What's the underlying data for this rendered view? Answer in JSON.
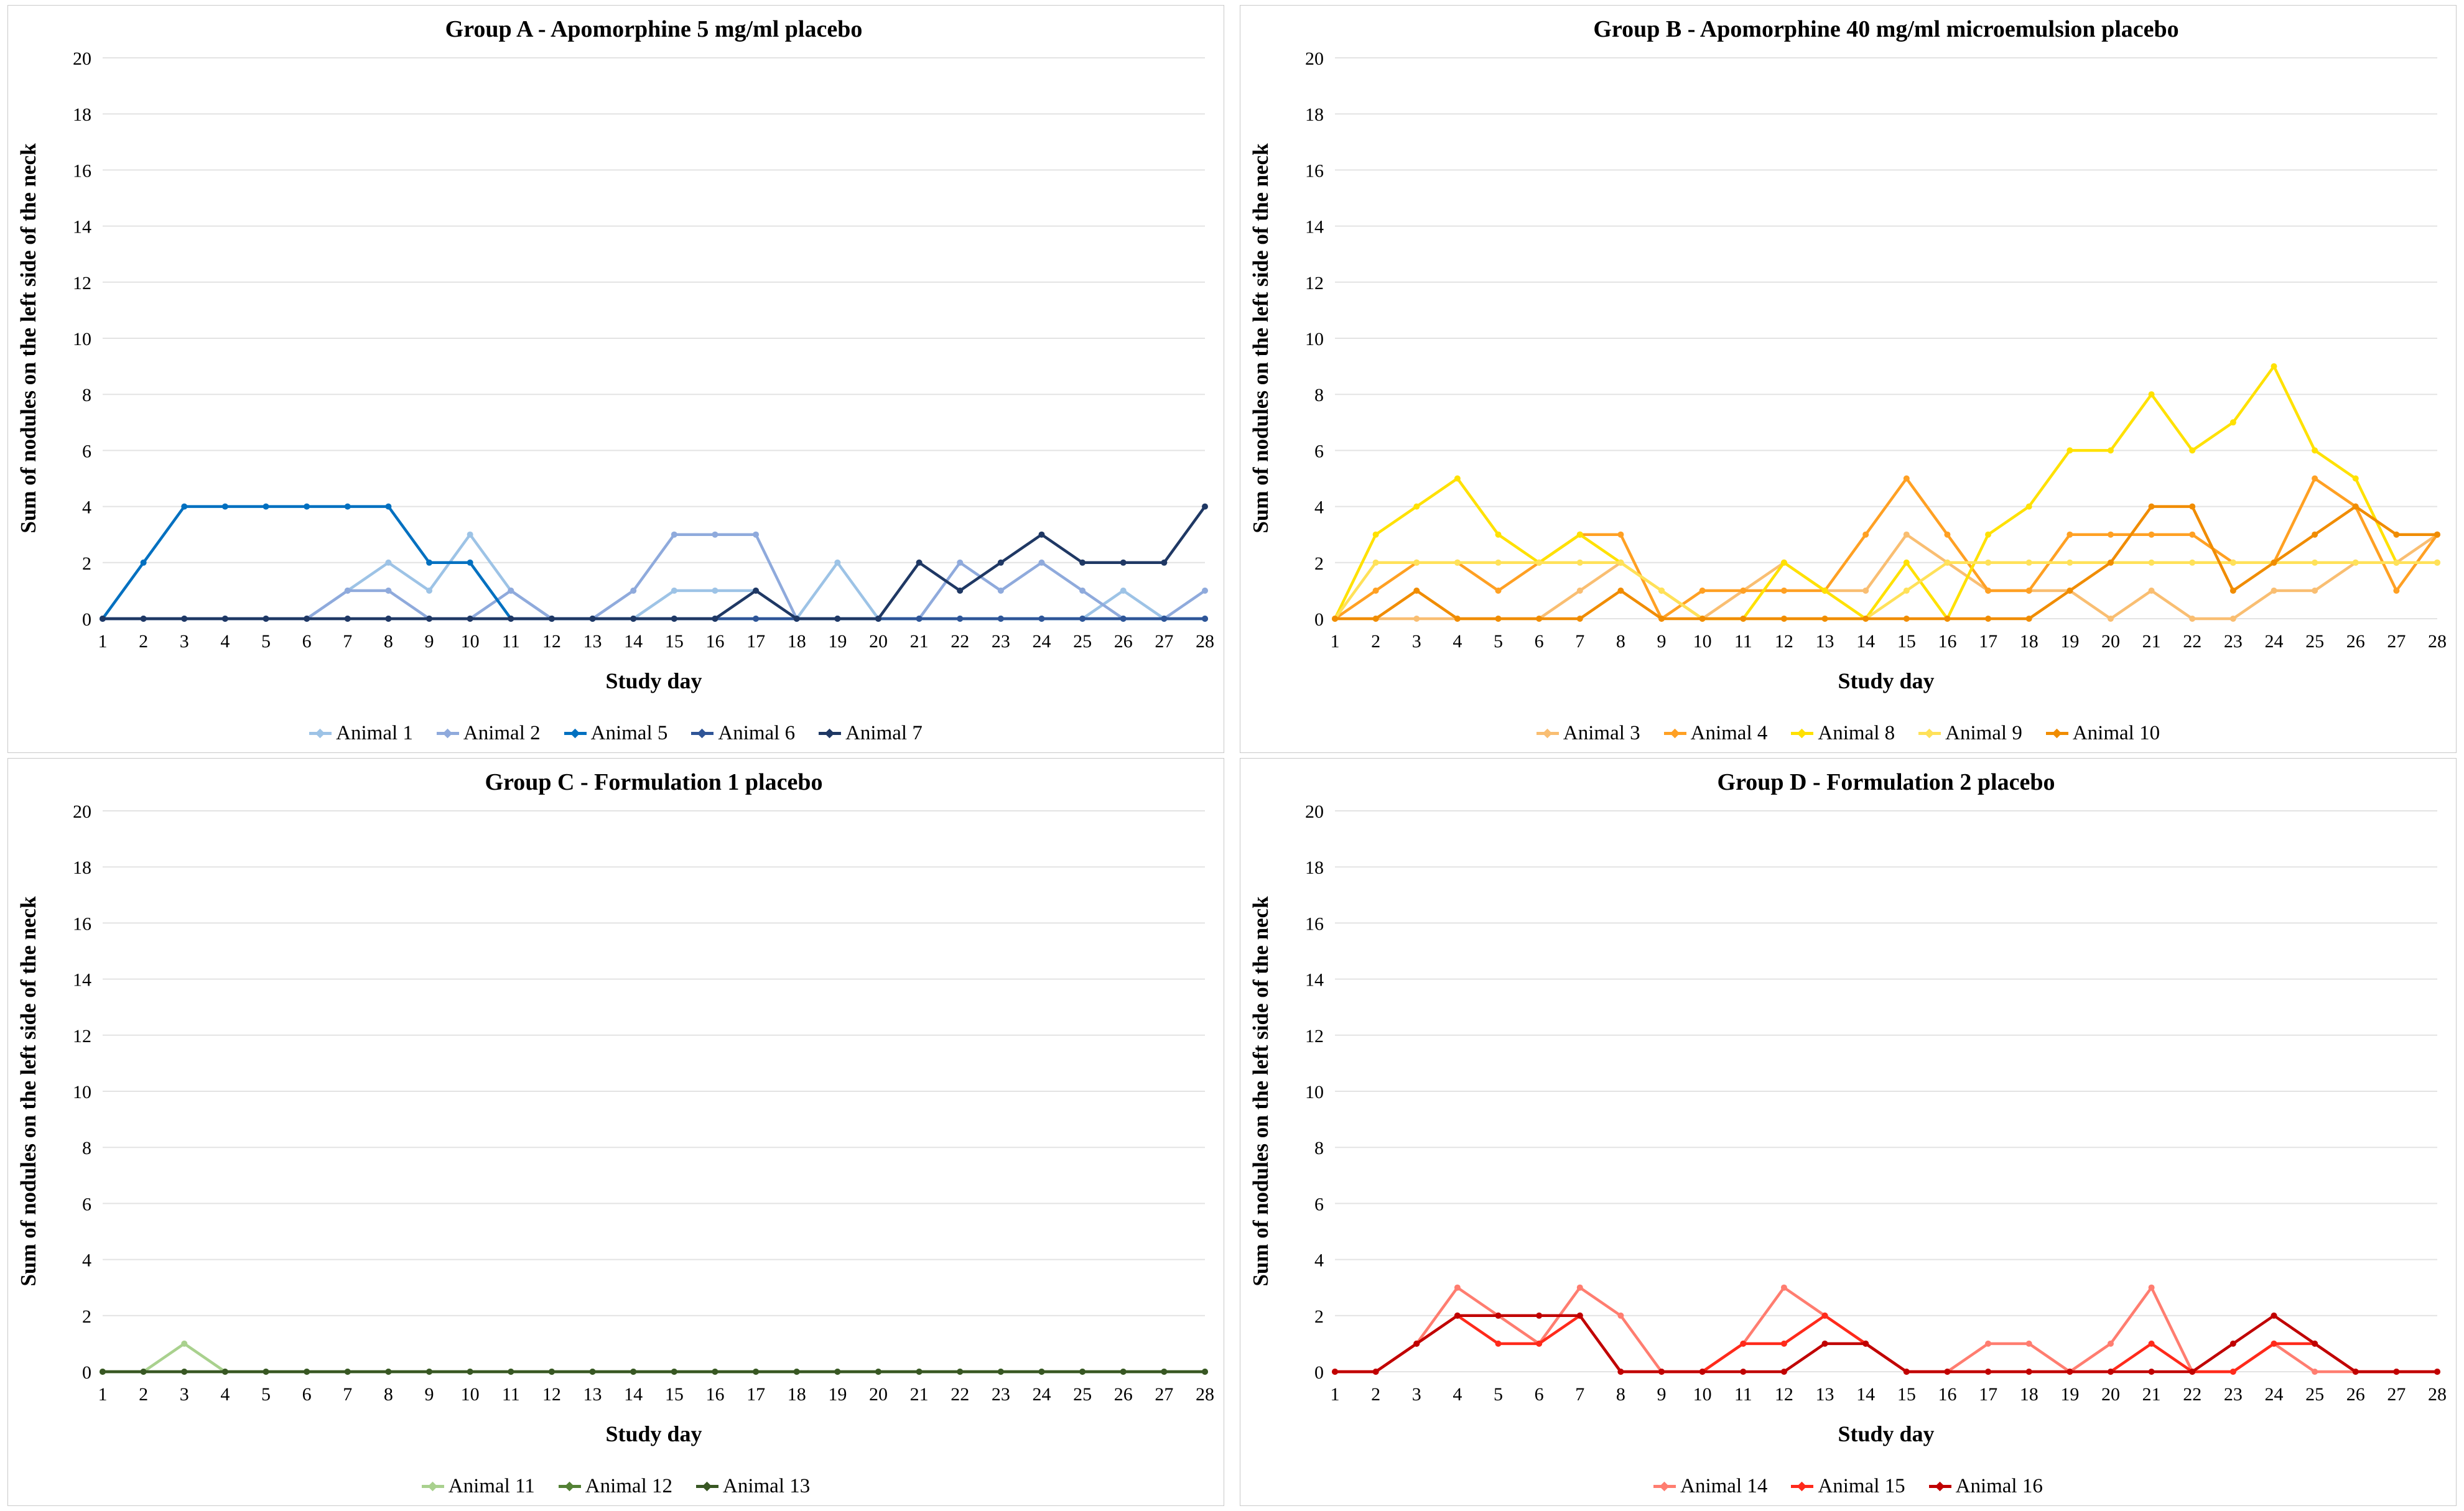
{
  "figure": {
    "background": "#ffffff",
    "panel_border_color": "#c9c9c9",
    "gridline_color": "#e3e3e3",
    "text_color": "#000000"
  },
  "chart_data": [
    {
      "id": "group-a",
      "type": "line",
      "title": "Group A - Apomorphine 5 mg/ml placebo",
      "xlabel": "Study day",
      "ylabel": "Sum of nodules on the left side of the neck",
      "x": [
        1,
        2,
        3,
        4,
        5,
        6,
        7,
        8,
        9,
        10,
        11,
        12,
        13,
        14,
        15,
        16,
        17,
        18,
        19,
        20,
        21,
        22,
        23,
        24,
        25,
        26,
        27,
        28
      ],
      "ylim": [
        0,
        20
      ],
      "yticks": [
        0,
        2,
        4,
        6,
        8,
        10,
        12,
        14,
        16,
        18,
        20
      ],
      "grid": true,
      "legend_position": "bottom",
      "series": [
        {
          "name": "Animal 1",
          "color": "#9DC3E6",
          "values": [
            0,
            0,
            0,
            0,
            0,
            0,
            1,
            2,
            1,
            3,
            1,
            0,
            0,
            0,
            1,
            1,
            1,
            0,
            2,
            0,
            0,
            0,
            0,
            0,
            0,
            1,
            0,
            0
          ]
        },
        {
          "name": "Animal 2",
          "color": "#8FAADC",
          "values": [
            0,
            0,
            0,
            0,
            0,
            0,
            1,
            1,
            0,
            0,
            1,
            0,
            0,
            1,
            3,
            3,
            3,
            0,
            0,
            0,
            0,
            2,
            1,
            2,
            1,
            0,
            0,
            1
          ]
        },
        {
          "name": "Animal 5",
          "color": "#0070C0",
          "values": [
            0,
            2,
            4,
            4,
            4,
            4,
            4,
            4,
            2,
            2,
            0,
            0,
            0,
            0,
            0,
            0,
            0,
            0,
            0,
            0,
            0,
            0,
            0,
            0,
            0,
            0,
            0,
            0
          ]
        },
        {
          "name": "Animal 6",
          "color": "#2F5597",
          "values": [
            0,
            0,
            0,
            0,
            0,
            0,
            0,
            0,
            0,
            0,
            0,
            0,
            0,
            0,
            0,
            0,
            0,
            0,
            0,
            0,
            0,
            0,
            0,
            0,
            0,
            0,
            0,
            0
          ]
        },
        {
          "name": "Animal 7",
          "color": "#1F3864",
          "values": [
            0,
            0,
            0,
            0,
            0,
            0,
            0,
            0,
            0,
            0,
            0,
            0,
            0,
            0,
            0,
            0,
            1,
            0,
            0,
            0,
            2,
            1,
            2,
            3,
            2,
            2,
            2,
            4
          ]
        }
      ]
    },
    {
      "id": "group-b",
      "type": "line",
      "title": "Group B -  Apomorphine 40 mg/ml microemulsion placebo",
      "xlabel": "Study day",
      "ylabel": "Sum of nodules on the left side of the neck",
      "x": [
        1,
        2,
        3,
        4,
        5,
        6,
        7,
        8,
        9,
        10,
        11,
        12,
        13,
        14,
        15,
        16,
        17,
        18,
        19,
        20,
        21,
        22,
        23,
        24,
        25,
        26,
        27,
        28
      ],
      "ylim": [
        0,
        20
      ],
      "yticks": [
        0,
        2,
        4,
        6,
        8,
        10,
        12,
        14,
        16,
        18,
        20
      ],
      "grid": true,
      "legend_position": "bottom",
      "series": [
        {
          "name": "Animal 3",
          "color": "#F9BE72",
          "values": [
            0,
            0,
            0,
            0,
            0,
            0,
            1,
            2,
            1,
            0,
            1,
            2,
            1,
            1,
            3,
            2,
            1,
            1,
            1,
            0,
            1,
            0,
            0,
            1,
            1,
            2,
            2,
            3
          ]
        },
        {
          "name": "Animal 4",
          "color": "#FFA023",
          "values": [
            0,
            1,
            2,
            2,
            1,
            2,
            3,
            3,
            0,
            1,
            1,
            1,
            1,
            3,
            5,
            3,
            1,
            1,
            3,
            3,
            3,
            3,
            2,
            2,
            5,
            4,
            1,
            3
          ]
        },
        {
          "name": "Animal 8",
          "color": "#FFE100",
          "values": [
            0,
            3,
            4,
            5,
            3,
            2,
            3,
            2,
            1,
            0,
            0,
            2,
            1,
            0,
            2,
            0,
            3,
            4,
            6,
            6,
            8,
            6,
            7,
            9,
            6,
            5,
            2,
            2
          ]
        },
        {
          "name": "Animal 9",
          "color": "#FFE159",
          "values": [
            0,
            2,
            2,
            2,
            2,
            2,
            2,
            2,
            1,
            0,
            0,
            0,
            0,
            0,
            1,
            2,
            2,
            2,
            2,
            2,
            2,
            2,
            2,
            2,
            2,
            2,
            2,
            2
          ]
        },
        {
          "name": "Animal 10",
          "color": "#F08C00",
          "values": [
            0,
            0,
            1,
            0,
            0,
            0,
            0,
            1,
            0,
            0,
            0,
            0,
            0,
            0,
            0,
            0,
            0,
            0,
            1,
            2,
            4,
            4,
            1,
            2,
            3,
            4,
            3,
            3
          ]
        }
      ]
    },
    {
      "id": "group-c",
      "type": "line",
      "title": "Group C - Formulation 1 placebo",
      "xlabel": "Study day",
      "ylabel": "Sum of nodules on the left side of the neck",
      "x": [
        1,
        2,
        3,
        4,
        5,
        6,
        7,
        8,
        9,
        10,
        11,
        12,
        13,
        14,
        15,
        16,
        17,
        18,
        19,
        20,
        21,
        22,
        23,
        24,
        25,
        26,
        27,
        28
      ],
      "ylim": [
        0,
        20
      ],
      "yticks": [
        0,
        2,
        4,
        6,
        8,
        10,
        12,
        14,
        16,
        18,
        20
      ],
      "grid": true,
      "legend_position": "bottom",
      "series": [
        {
          "name": "Animal 11",
          "color": "#A9D18E",
          "values": [
            0,
            0,
            1,
            0,
            0,
            0,
            0,
            0,
            0,
            0,
            0,
            0,
            0,
            0,
            0,
            0,
            0,
            0,
            0,
            0,
            0,
            0,
            0,
            0,
            0,
            0,
            0,
            0
          ]
        },
        {
          "name": "Animal 12",
          "color": "#538135",
          "values": [
            0,
            0,
            0,
            0,
            0,
            0,
            0,
            0,
            0,
            0,
            0,
            0,
            0,
            0,
            0,
            0,
            0,
            0,
            0,
            0,
            0,
            0,
            0,
            0,
            0,
            0,
            0,
            0
          ]
        },
        {
          "name": "Animal 13",
          "color": "#385723",
          "values": [
            0,
            0,
            0,
            0,
            0,
            0,
            0,
            0,
            0,
            0,
            0,
            0,
            0,
            0,
            0,
            0,
            0,
            0,
            0,
            0,
            0,
            0,
            0,
            0,
            0,
            0,
            0,
            0
          ]
        }
      ]
    },
    {
      "id": "group-d",
      "type": "line",
      "title": "Group D - Formulation 2 placebo",
      "xlabel": "Study day",
      "ylabel": "Sum of nodules on the left side of the neck",
      "x": [
        1,
        2,
        3,
        4,
        5,
        6,
        7,
        8,
        9,
        10,
        11,
        12,
        13,
        14,
        15,
        16,
        17,
        18,
        19,
        20,
        21,
        22,
        23,
        24,
        25,
        26,
        27,
        28
      ],
      "ylim": [
        0,
        20
      ],
      "yticks": [
        0,
        2,
        4,
        6,
        8,
        10,
        12,
        14,
        16,
        18,
        20
      ],
      "grid": true,
      "legend_position": "bottom",
      "series": [
        {
          "name": "Animal 14",
          "color": "#FF7D70",
          "values": [
            0,
            0,
            1,
            3,
            2,
            1,
            3,
            2,
            0,
            0,
            1,
            3,
            2,
            1,
            0,
            0,
            1,
            1,
            0,
            1,
            3,
            0,
            0,
            1,
            0,
            0,
            0,
            0
          ]
        },
        {
          "name": "Animal 15",
          "color": "#FF2A1B",
          "values": [
            0,
            0,
            1,
            2,
            1,
            1,
            2,
            0,
            0,
            0,
            1,
            1,
            2,
            1,
            0,
            0,
            0,
            0,
            0,
            0,
            1,
            0,
            0,
            1,
            1,
            0,
            0,
            0
          ]
        },
        {
          "name": "Animal 16",
          "color": "#C00000",
          "values": [
            0,
            0,
            1,
            2,
            2,
            2,
            2,
            0,
            0,
            0,
            0,
            0,
            1,
            1,
            0,
            0,
            0,
            0,
            0,
            0,
            0,
            0,
            1,
            2,
            1,
            0,
            0,
            0
          ]
        }
      ]
    }
  ]
}
